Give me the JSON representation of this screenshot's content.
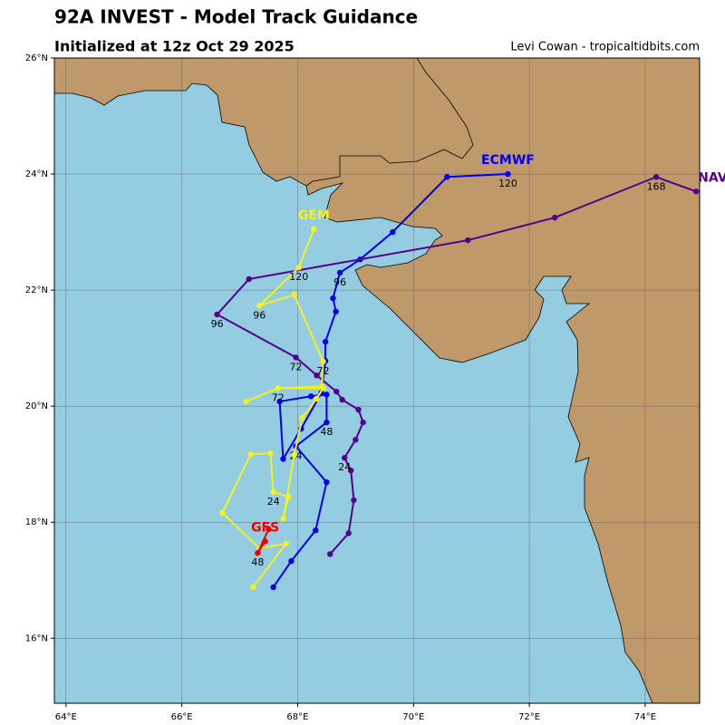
{
  "header": {
    "title": "92A INVEST - Model Track Guidance",
    "subtitle": "Initialized at 12z Oct 29 2025",
    "credit": "Levi Cowan - tropicaltidbits.com"
  },
  "map": {
    "xlim": [
      63.8,
      74.94
    ],
    "ylim": [
      14.88,
      26
    ],
    "xticks": [
      {
        "value": 64,
        "label": "64°E"
      },
      {
        "value": 66,
        "label": "66°E"
      },
      {
        "value": 68,
        "label": "68°E"
      },
      {
        "value": 70,
        "label": "70°E"
      },
      {
        "value": 72,
        "label": "72°E"
      },
      {
        "value": 74,
        "label": "74°E"
      }
    ],
    "yticks": [
      {
        "value": 16,
        "label": "16°N"
      },
      {
        "value": 18,
        "label": "18°N"
      },
      {
        "value": 20,
        "label": "20°N"
      },
      {
        "value": 22,
        "label": "22°N"
      },
      {
        "value": 24,
        "label": "24°N"
      },
      {
        "value": 26,
        "label": "26°N"
      }
    ],
    "grid": true,
    "land_color": "#c0996b",
    "sea_color": "#94cce2",
    "models": [
      {
        "name": "ECMWF",
        "color": "#0000ee",
        "lon": [
          67.58,
          67.89,
          68.31,
          68.5,
          67.97,
          68.5,
          68.5,
          68.23,
          67.69,
          67.75,
          68.06,
          68.41,
          68.48,
          68.48,
          68.66,
          68.61,
          68.73,
          69.08,
          69.64,
          70.58,
          71.63
        ],
        "lat": [
          16.88,
          17.33,
          17.86,
          18.69,
          19.31,
          19.72,
          20.2,
          20.17,
          20.08,
          19.09,
          19.61,
          20.23,
          20.78,
          21.11,
          21.63,
          21.86,
          22.3,
          22.53,
          23.0,
          23.95,
          24.0
        ],
        "labels": [
          {
            "text": "24",
            "lon": 67.97,
            "lat": 19.31
          },
          {
            "text": "48",
            "lon": 68.5,
            "lat": 19.72
          },
          {
            "text": "96",
            "lon": 68.73,
            "lat": 22.3
          },
          {
            "text": "120",
            "lon": 71.63,
            "lat": 24.0
          }
        ]
      },
      {
        "name": "NAV",
        "color": "#550088",
        "lon": [
          68.56,
          68.88,
          68.97,
          68.92,
          68.81,
          69.0,
          69.13,
          69.05,
          68.77,
          68.67,
          68.33,
          67.97,
          66.61,
          67.16,
          70.94,
          72.44,
          74.19,
          74.88
        ],
        "lat": [
          17.45,
          17.81,
          18.38,
          18.89,
          19.11,
          19.42,
          19.72,
          19.94,
          20.11,
          20.25,
          20.53,
          20.84,
          21.58,
          22.19,
          22.86,
          23.25,
          23.95,
          23.7
        ],
        "labels": [
          {
            "text": "24",
            "lon": 68.81,
            "lat": 19.11
          },
          {
            "text": "72",
            "lon": 67.97,
            "lat": 20.84
          },
          {
            "text": "96",
            "lon": 66.61,
            "lat": 21.58
          },
          {
            "text": "168",
            "lon": 74.19,
            "lat": 23.95
          }
        ]
      },
      {
        "name": "GEM",
        "color": "#f5f020",
        "lon": [
          67.23,
          67.8,
          67.34,
          66.7,
          67.19,
          67.53,
          67.58,
          67.84,
          67.75,
          67.94,
          68.08,
          68.33,
          68.44,
          67.66,
          67.11,
          67.66,
          68.42,
          68.44,
          67.94,
          67.34,
          68.02,
          68.28
        ],
        "lat": [
          16.88,
          17.63,
          17.55,
          18.16,
          19.17,
          19.19,
          18.52,
          18.44,
          18.06,
          19.16,
          19.8,
          20.13,
          20.31,
          20.31,
          20.08,
          20.31,
          20.34,
          20.77,
          21.92,
          21.73,
          22.39,
          23.05
        ],
        "labels": [
          {
            "text": "24",
            "lon": 67.58,
            "lat": 18.52
          },
          {
            "text": "72",
            "lon": 67.66,
            "lat": 20.31
          },
          {
            "text": "72",
            "lon": 68.44,
            "lat": 20.77
          },
          {
            "text": "96",
            "lon": 67.34,
            "lat": 21.73
          },
          {
            "text": "120",
            "lon": 68.02,
            "lat": 22.39
          }
        ]
      },
      {
        "name": "GFS",
        "color": "#ee0000",
        "lon": [
          67.5,
          67.31,
          67.44
        ],
        "lat": [
          17.88,
          17.47,
          17.67
        ],
        "labels": [
          {
            "text": "48",
            "lon": 67.31,
            "lat": 17.47
          }
        ]
      }
    ]
  }
}
